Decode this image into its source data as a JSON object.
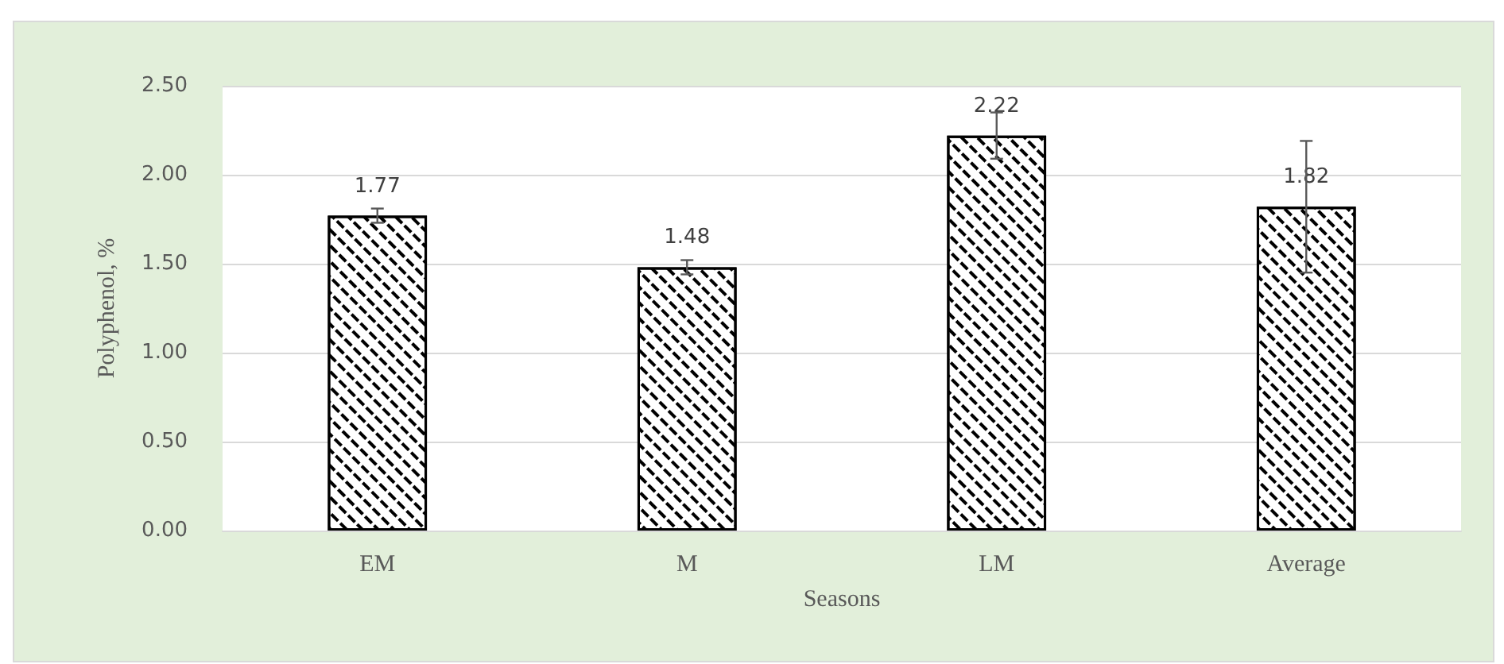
{
  "chart_data": {
    "type": "bar",
    "xlabel": "Seasons",
    "ylabel": "Polyphenol, %",
    "categories": [
      "EM",
      "M",
      "LM",
      "Average"
    ],
    "values": [
      1.77,
      1.48,
      2.22,
      1.82
    ],
    "errors": [
      0.04,
      0.04,
      0.13,
      0.37
    ],
    "color": "#ffffff",
    "ylim": [
      0,
      2.5
    ],
    "yticks": [
      {
        "value": 0,
        "label": "0.00"
      },
      {
        "value": 0.5,
        "label": "0.50"
      },
      {
        "value": 1,
        "label": "1.00"
      },
      {
        "value": 1.5,
        "label": "1.50"
      },
      {
        "value": 2,
        "label": "2.00"
      },
      {
        "value": 2.5,
        "label": "2.50"
      }
    ],
    "grid": "y",
    "data_labels": true
  }
}
